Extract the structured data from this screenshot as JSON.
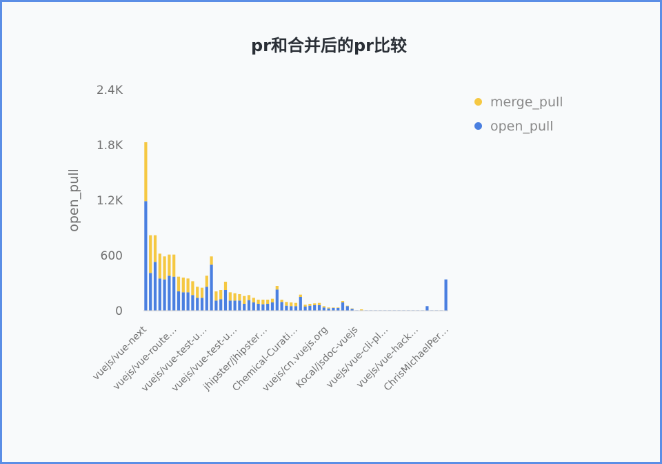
{
  "chart_data": {
    "type": "bar",
    "stacked": true,
    "title": "pr和合并后的pr比较",
    "ylabel": "open_pull",
    "xlabel": "",
    "ylim": [
      0,
      2400
    ],
    "yticks": [
      "0",
      "600",
      "1.2K",
      "1.8K",
      "2.4K"
    ],
    "ytick_values": [
      0,
      600,
      1200,
      1800,
      2400
    ],
    "legend_position": "top-right",
    "category_labels": [
      "vuejs/vue-next",
      "vuejs/vue-route…",
      "vuejs/vue-test-u…",
      "vuejs/vue-test-u…",
      "jhipster/jhipster…",
      "Chemical-Curati…",
      "vuejs/cn.vuejs.org",
      "Kocal/jsdoc-vuejs",
      "vuejs/vue-cli-pl…",
      "vuejs/vue-hack…",
      "ChrisMichaelPer…"
    ],
    "series": [
      {
        "name": "open_pull",
        "color": "#4a7fe0",
        "values": [
          1190,
          410,
          530,
          350,
          340,
          380,
          370,
          210,
          200,
          200,
          170,
          140,
          140,
          260,
          500,
          110,
          125,
          225,
          110,
          110,
          110,
          75,
          115,
          90,
          75,
          70,
          75,
          90,
          230,
          95,
          55,
          50,
          50,
          150,
          45,
          55,
          60,
          60,
          35,
          25,
          30,
          30,
          90,
          50,
          20,
          5,
          5,
          5,
          5,
          5,
          5,
          5,
          5,
          5,
          5,
          5,
          5,
          5,
          5,
          5,
          50,
          5,
          5,
          5,
          340
        ]
      },
      {
        "name": "merge_pull",
        "color": "#f5c842",
        "values": [
          640,
          410,
          290,
          270,
          250,
          230,
          240,
          160,
          160,
          150,
          150,
          120,
          110,
          120,
          90,
          100,
          100,
          90,
          90,
          80,
          70,
          85,
          55,
          50,
          45,
          50,
          45,
          40,
          40,
          25,
          40,
          40,
          35,
          25,
          20,
          20,
          20,
          25,
          15,
          10,
          5,
          5,
          15,
          5,
          5,
          0,
          10,
          0,
          0,
          0,
          0,
          0,
          0,
          0,
          0,
          0,
          0,
          0,
          0,
          0,
          0,
          0,
          0,
          0,
          0
        ]
      }
    ]
  }
}
